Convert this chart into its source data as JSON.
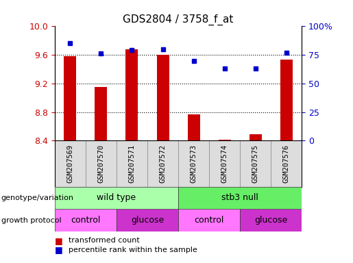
{
  "title": "GDS2804 / 3758_f_at",
  "samples": [
    "GSM207569",
    "GSM207570",
    "GSM207571",
    "GSM207572",
    "GSM207573",
    "GSM207574",
    "GSM207575",
    "GSM207576"
  ],
  "transformed_count": [
    9.58,
    9.15,
    9.68,
    9.6,
    8.77,
    8.41,
    8.49,
    9.53
  ],
  "percentile_rank": [
    85,
    76,
    79,
    80,
    70,
    63,
    63,
    77
  ],
  "ylim_left": [
    8.4,
    10.0
  ],
  "ylim_right": [
    0,
    100
  ],
  "yticks_left": [
    8.4,
    8.8,
    9.2,
    9.6,
    10.0
  ],
  "yticks_right": [
    0,
    25,
    50,
    75,
    100
  ],
  "bar_color": "#cc0000",
  "dot_color": "#0000cc",
  "bar_bottom": 8.4,
  "genotype": [
    {
      "label": "wild type",
      "start": 0,
      "end": 4,
      "color": "#aaffaa"
    },
    {
      "label": "stb3 null",
      "start": 4,
      "end": 8,
      "color": "#66ee66"
    }
  ],
  "growth": [
    {
      "label": "control",
      "start": 0,
      "end": 2,
      "color": "#ff77ff"
    },
    {
      "label": "glucose",
      "start": 2,
      "end": 4,
      "color": "#cc33cc"
    },
    {
      "label": "control",
      "start": 4,
      "end": 6,
      "color": "#ff77ff"
    },
    {
      "label": "glucose",
      "start": 6,
      "end": 8,
      "color": "#cc33cc"
    }
  ],
  "left_label_color": "#cc0000",
  "right_label_color": "#0000cc",
  "tick_label_fontsize": 7.5,
  "title_fontsize": 11,
  "bar_width": 0.4
}
